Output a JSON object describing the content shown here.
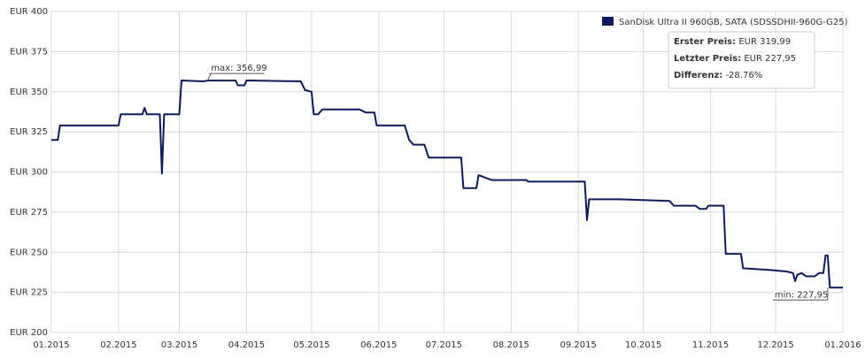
{
  "chart_data": {
    "type": "line",
    "legend": "SanDisk Ultra II 960GB, SATA (SDSSDHII-960G-G25)",
    "series": [
      {
        "name": "SanDisk Ultra II 960GB, SATA (SDSSDHII-960G-G25)",
        "color": "#0d1a5c",
        "x": [
          0,
          3,
          4,
          31,
          32,
          42,
          43,
          44,
          50,
          51,
          52,
          59,
          60,
          70,
          72,
          85,
          86,
          89,
          90,
          115,
          117,
          120,
          121,
          123,
          125,
          142,
          145,
          149,
          150,
          163,
          165,
          167,
          172,
          174,
          189,
          190,
          196,
          197,
          203,
          219,
          220,
          246,
          247,
          248,
          262,
          285,
          287,
          297,
          299,
          302,
          303,
          310,
          311,
          318,
          319,
          331,
          339,
          342,
          343,
          344,
          346,
          348,
          352,
          354,
          356,
          357,
          358,
          359,
          365
        ],
        "values": [
          319.99,
          320,
          329,
          329,
          336,
          336,
          340,
          336,
          336,
          299,
          336,
          336,
          357,
          356.5,
          356.99,
          356.99,
          354,
          354,
          357,
          356.5,
          351,
          350,
          336,
          336,
          339,
          339,
          337,
          337,
          329,
          329,
          320,
          317,
          317,
          309,
          309,
          290,
          290,
          298,
          295,
          295,
          294,
          294,
          270,
          283,
          283,
          282,
          279,
          279,
          277,
          277,
          279,
          279,
          249,
          249,
          240,
          239,
          238,
          237,
          232,
          236,
          237,
          235,
          235,
          237,
          237,
          248,
          248,
          227.95,
          227.95
        ]
      }
    ],
    "ylim": [
      200,
      400
    ],
    "yticks": [
      {
        "value": 200,
        "label": "EUR 200"
      },
      {
        "value": 225,
        "label": "EUR 225"
      },
      {
        "value": 250,
        "label": "EUR 250"
      },
      {
        "value": 275,
        "label": "EUR 275"
      },
      {
        "value": 300,
        "label": "EUR 300"
      },
      {
        "value": 325,
        "label": "EUR 325"
      },
      {
        "value": 350,
        "label": "EUR 350"
      },
      {
        "value": 375,
        "label": "EUR 375"
      },
      {
        "value": 400,
        "label": "EUR 400"
      }
    ],
    "xlim": [
      0,
      365
    ],
    "xticks": [
      {
        "value": 0,
        "label": "01.2015"
      },
      {
        "value": 31,
        "label": "02.2015"
      },
      {
        "value": 59,
        "label": "03.2015"
      },
      {
        "value": 90,
        "label": "04.2015"
      },
      {
        "value": 120,
        "label": "05.2015"
      },
      {
        "value": 151,
        "label": "06.2015"
      },
      {
        "value": 181,
        "label": "07.2015"
      },
      {
        "value": 212,
        "label": "08.2015"
      },
      {
        "value": 243,
        "label": "09.2015"
      },
      {
        "value": 273,
        "label": "10.2015"
      },
      {
        "value": 304,
        "label": "11.2015"
      },
      {
        "value": 334,
        "label": "12.2015"
      },
      {
        "value": 365,
        "label": "01.2016"
      }
    ],
    "grid": true,
    "annotations": [
      {
        "text": "max: 356,99",
        "x": 72,
        "value": 356.99
      },
      {
        "text": "min: 227,95",
        "x": 358,
        "value": 227.95
      }
    ],
    "info": [
      {
        "label": "Erster Preis:",
        "value": "EUR 319,99"
      },
      {
        "label": "Letzter Preis:",
        "value": "EUR 227,95"
      },
      {
        "label": "Differenz:",
        "value": "-28.76%"
      }
    ]
  }
}
